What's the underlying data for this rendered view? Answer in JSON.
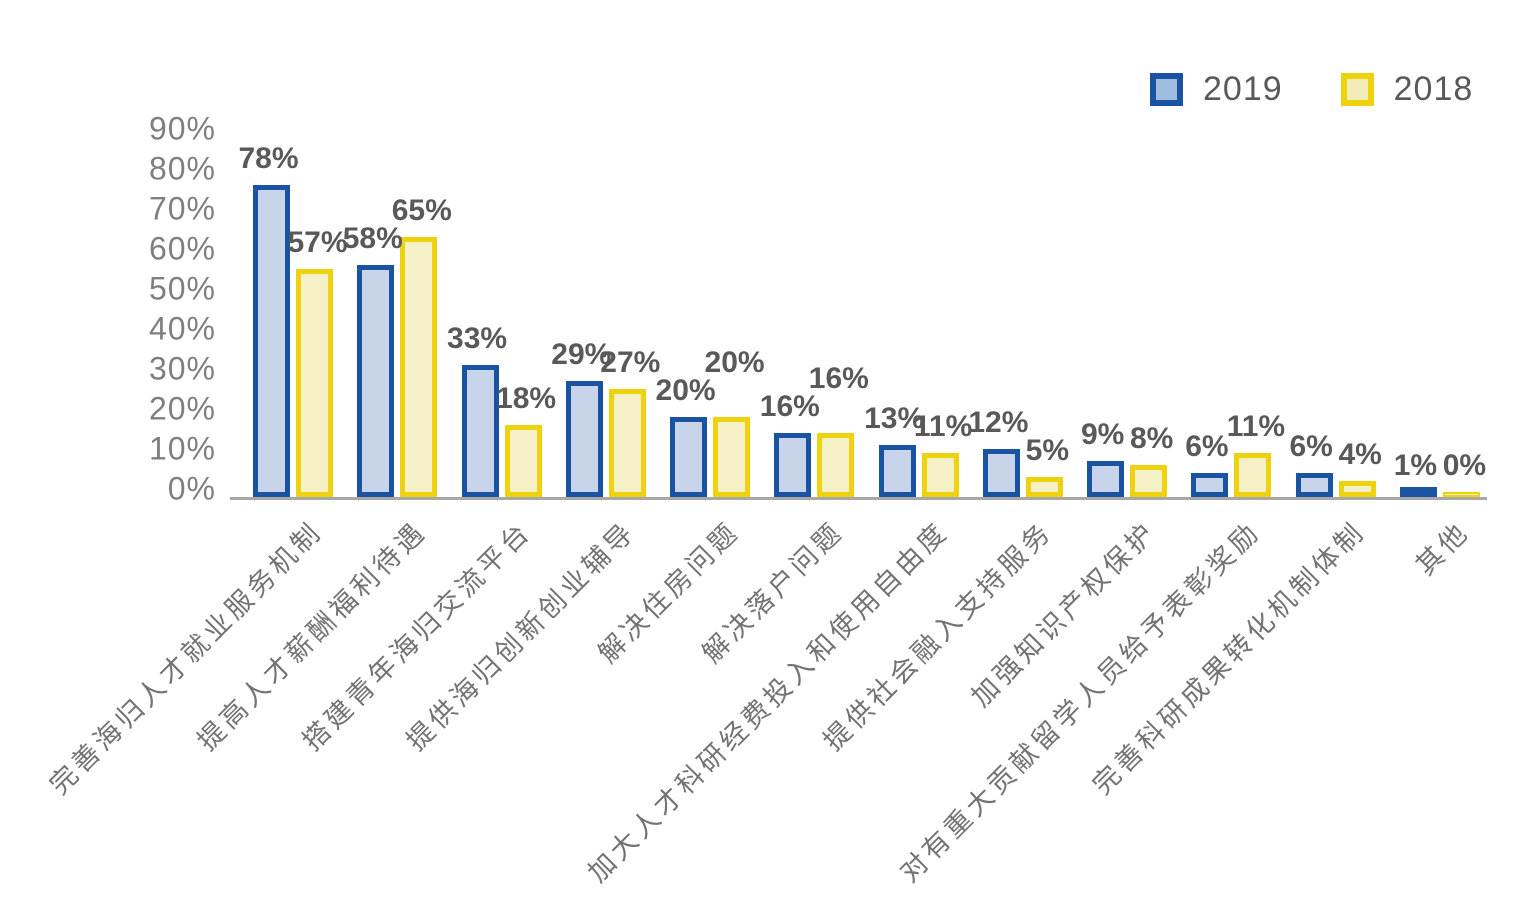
{
  "chart_data": {
    "type": "bar",
    "title": "",
    "categories": [
      "完善海归人才就业服务机制",
      "提高人才薪酬福利待遇",
      "搭建青年海归交流平台",
      "提供海归创新创业辅导",
      "解决住房问题",
      "解决落户问题",
      "加大人才科研经费投入和使用自由度",
      "提供社会融入支持服务",
      "加强知识产权保护",
      "对有重大贡献留学人员给予表彰奖励",
      "完善科研成果转化机制体制",
      "其他"
    ],
    "series": [
      {
        "name": "2019",
        "values": [
          78,
          58,
          33,
          29,
          20,
          16,
          13,
          12,
          9,
          6,
          6,
          1
        ],
        "border_color": "#1a53a1",
        "fill_color": "#c7d4e9",
        "legend_fill_color": "#9fbbde"
      },
      {
        "name": "2018",
        "values": [
          57,
          65,
          18,
          27,
          20,
          16,
          11,
          5,
          8,
          11,
          4,
          0
        ],
        "border_color": "#efd20e",
        "fill_color": "#f5f0c6",
        "legend_fill_color": "#f1ecb8"
      }
    ],
    "value_suffix": "%",
    "ylim": [
      0,
      90
    ],
    "ytick_labels": [
      "90%",
      "80%",
      "70%",
      "60%",
      "50%",
      "40%",
      "30%",
      "20%",
      "10%",
      "0%"
    ],
    "grid": false,
    "legend_position": "top-right",
    "axis_line_color": "#a8a8a8",
    "value_label_color": "#595959",
    "tick_label_color": "#7f7f7f",
    "category_label_color": "#737373"
  }
}
